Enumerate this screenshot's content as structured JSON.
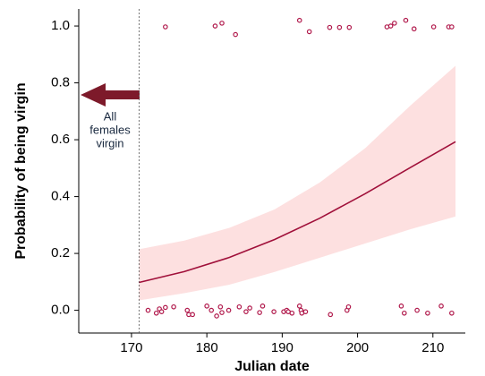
{
  "chart_data": {
    "type": "scatter",
    "xlabel": "Julian date",
    "ylabel": "Probability of being virgin",
    "xlim": [
      163,
      214.3
    ],
    "ylim": [
      -0.08,
      1.06
    ],
    "xticks": [
      170,
      180,
      190,
      200,
      210
    ],
    "yticks": [
      {
        "value": 0,
        "label": "0.0"
      },
      0.2,
      0.4,
      0.6,
      0.8,
      {
        "value": 1,
        "label": "1.0"
      }
    ],
    "vline": 171,
    "annotation": [
      "All",
      "females",
      "virgin"
    ],
    "series": [
      {
        "color": "#b0174a",
        "x": [
          174.5,
          181.1,
          182.0,
          183.8,
          192.3,
          193.6,
          196.3,
          197.6,
          198.9,
          203.9,
          204.4,
          204.9,
          206.4,
          207.5,
          210.1,
          212.1,
          212.5,
          172.2,
          173.3,
          173.7,
          174.0,
          174.5,
          175.6,
          177.4,
          177.6,
          178.1,
          180.0,
          180.6,
          181.3,
          181.8,
          182.0,
          182.9,
          184.3,
          185.2,
          185.7,
          187.0,
          187.4,
          188.9,
          190.2,
          190.6,
          190.8,
          191.3,
          192.3,
          192.5,
          192.6,
          193.1,
          196.4,
          198.6,
          198.8,
          205.8,
          206.2,
          207.9,
          209.3,
          211.1,
          212.5
        ],
        "values": [
          0.997,
          1.0,
          1.01,
          0.97,
          1.02,
          0.98,
          0.995,
          0.995,
          0.995,
          0.997,
          1.0,
          1.01,
          1.02,
          0.99,
          0.997,
          0.997,
          0.997,
          0.0,
          -0.01,
          0.005,
          -0.005,
          0.01,
          0.012,
          0.0,
          -0.015,
          -0.015,
          0.015,
          0.0,
          -0.02,
          0.012,
          -0.008,
          0.0,
          0.012,
          -0.005,
          0.008,
          -0.008,
          0.015,
          -0.005,
          -0.005,
          0.0,
          -0.005,
          -0.01,
          0.015,
          0.0,
          -0.01,
          -0.005,
          -0.015,
          0.0,
          0.012,
          0.015,
          -0.01,
          0.0,
          -0.01,
          0.015,
          -0.01
        ]
      }
    ],
    "fit": {
      "color": "#a0103a",
      "band_color": "#fde0e0",
      "x": [
        171,
        177,
        183,
        189,
        195,
        201,
        207,
        213
      ],
      "values": [
        0.098,
        0.136,
        0.186,
        0.249,
        0.324,
        0.41,
        0.502,
        0.593
      ],
      "lower": [
        0.035,
        0.06,
        0.09,
        0.135,
        0.185,
        0.235,
        0.285,
        0.33
      ],
      "upper": [
        0.215,
        0.245,
        0.29,
        0.355,
        0.45,
        0.57,
        0.72,
        0.86
      ]
    }
  }
}
